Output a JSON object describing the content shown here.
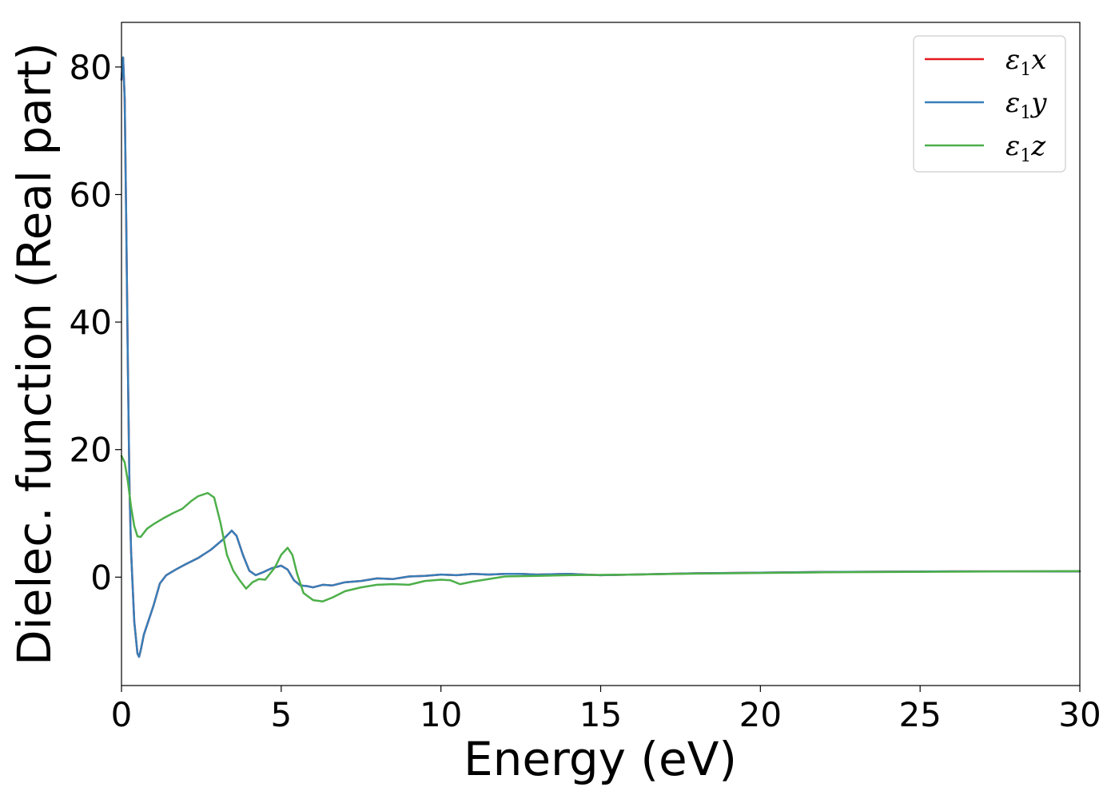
{
  "chart_data": {
    "type": "line",
    "title": "",
    "xlabel": "Energy (eV)",
    "ylabel": "Dielec. function (Real part)",
    "xlim": [
      0,
      30
    ],
    "ylim": [
      -17,
      87
    ],
    "xticks": [
      0,
      5,
      10,
      15,
      20,
      25,
      30
    ],
    "yticks": [
      0,
      20,
      40,
      60,
      80
    ],
    "grid": false,
    "legend_position": "top-right",
    "series": [
      {
        "name": "ε1x",
        "symbol": "ε",
        "subscript": "1",
        "var": "x",
        "color": "#e41a1c",
        "x": [
          0,
          0.05,
          0.1,
          0.15,
          0.2,
          0.25,
          0.3,
          0.4,
          0.5,
          0.55,
          0.6,
          0.7,
          0.8,
          1.0,
          1.2,
          1.4,
          1.7,
          2.0,
          2.4,
          2.8,
          3.2,
          3.45,
          3.6,
          3.8,
          4.0,
          4.2,
          4.4,
          4.7,
          5.0,
          5.2,
          5.4,
          5.6,
          5.8,
          6.0,
          6.3,
          6.6,
          7.0,
          7.5,
          8.0,
          8.5,
          9.0,
          9.5,
          10.0,
          10.5,
          11.0,
          11.5,
          12.0,
          12.5,
          13.0,
          14.0,
          14.5,
          15.0,
          16.0,
          18.0,
          20.0,
          22.0,
          24.0,
          26.0,
          28.0,
          30.0
        ],
        "y": [
          78,
          81.5,
          75,
          55,
          33,
          14,
          4,
          -7,
          -12,
          -12.5,
          -11.5,
          -9,
          -7.5,
          -4.5,
          -1,
          0.3,
          1.2,
          2,
          3,
          4.3,
          6,
          7.3,
          6.5,
          3.5,
          1,
          0.3,
          0.7,
          1.4,
          1.8,
          1.2,
          -0.5,
          -1.3,
          -1.4,
          -1.6,
          -1.2,
          -1.3,
          -0.8,
          -0.6,
          -0.2,
          -0.3,
          0.1,
          0.2,
          0.4,
          0.3,
          0.5,
          0.4,
          0.5,
          0.5,
          0.4,
          0.5,
          0.4,
          0.3,
          0.4,
          0.6,
          0.7,
          0.8,
          0.85,
          0.9,
          0.9,
          0.9
        ]
      },
      {
        "name": "ε1y",
        "symbol": "ε",
        "subscript": "1",
        "var": "y",
        "color": "#377eb8",
        "x": [
          0,
          0.05,
          0.1,
          0.15,
          0.2,
          0.25,
          0.3,
          0.4,
          0.5,
          0.55,
          0.6,
          0.7,
          0.8,
          1.0,
          1.2,
          1.4,
          1.7,
          2.0,
          2.4,
          2.8,
          3.2,
          3.45,
          3.6,
          3.8,
          4.0,
          4.2,
          4.4,
          4.7,
          5.0,
          5.2,
          5.4,
          5.6,
          5.8,
          6.0,
          6.3,
          6.6,
          7.0,
          7.5,
          8.0,
          8.5,
          9.0,
          9.5,
          10.0,
          10.5,
          11.0,
          11.5,
          12.0,
          12.5,
          13.0,
          14.0,
          14.5,
          15.0,
          16.0,
          18.0,
          20.0,
          22.0,
          24.0,
          26.0,
          28.0,
          30.0
        ],
        "y": [
          78,
          81.5,
          75,
          55,
          33,
          14,
          4,
          -7,
          -12,
          -12.5,
          -11.5,
          -9,
          -7.5,
          -4.5,
          -1,
          0.3,
          1.2,
          2,
          3,
          4.3,
          6,
          7.3,
          6.5,
          3.5,
          1,
          0.3,
          0.7,
          1.4,
          1.8,
          1.2,
          -0.5,
          -1.3,
          -1.4,
          -1.6,
          -1.2,
          -1.3,
          -0.8,
          -0.6,
          -0.2,
          -0.3,
          0.1,
          0.2,
          0.4,
          0.3,
          0.5,
          0.4,
          0.5,
          0.5,
          0.4,
          0.5,
          0.4,
          0.3,
          0.4,
          0.6,
          0.7,
          0.8,
          0.85,
          0.9,
          0.9,
          0.9
        ]
      },
      {
        "name": "ε1z",
        "symbol": "ε",
        "subscript": "1",
        "var": "z",
        "color": "#4daf4a",
        "x": [
          0,
          0.1,
          0.2,
          0.3,
          0.4,
          0.5,
          0.6,
          0.8,
          1.0,
          1.3,
          1.6,
          1.9,
          2.2,
          2.4,
          2.7,
          2.9,
          3.1,
          3.3,
          3.5,
          3.7,
          3.9,
          4.1,
          4.3,
          4.5,
          4.8,
          5.0,
          5.2,
          5.35,
          5.5,
          5.7,
          6.0,
          6.3,
          6.6,
          7.0,
          7.5,
          8.0,
          8.5,
          9.0,
          9.5,
          10.0,
          10.3,
          10.6,
          11.0,
          12.0,
          13.0,
          14.0,
          15.0,
          16.0,
          18.0,
          20.0,
          22.0,
          24.0,
          26.0,
          28.0,
          30.0
        ],
        "y": [
          19,
          18,
          15,
          11,
          8,
          6.4,
          6.3,
          7.6,
          8.3,
          9.2,
          10,
          10.7,
          12,
          12.7,
          13.2,
          12.5,
          8.5,
          3.5,
          1,
          -0.5,
          -1.8,
          -0.8,
          -0.3,
          -0.4,
          1.5,
          3.5,
          4.6,
          3.5,
          0.5,
          -2.5,
          -3.6,
          -3.8,
          -3.2,
          -2.2,
          -1.6,
          -1.2,
          -1.1,
          -1.2,
          -0.6,
          -0.4,
          -0.5,
          -1.1,
          -0.7,
          0.1,
          0.2,
          0.3,
          0.35,
          0.4,
          0.55,
          0.65,
          0.75,
          0.8,
          0.85,
          0.9,
          0.95
        ]
      }
    ]
  }
}
